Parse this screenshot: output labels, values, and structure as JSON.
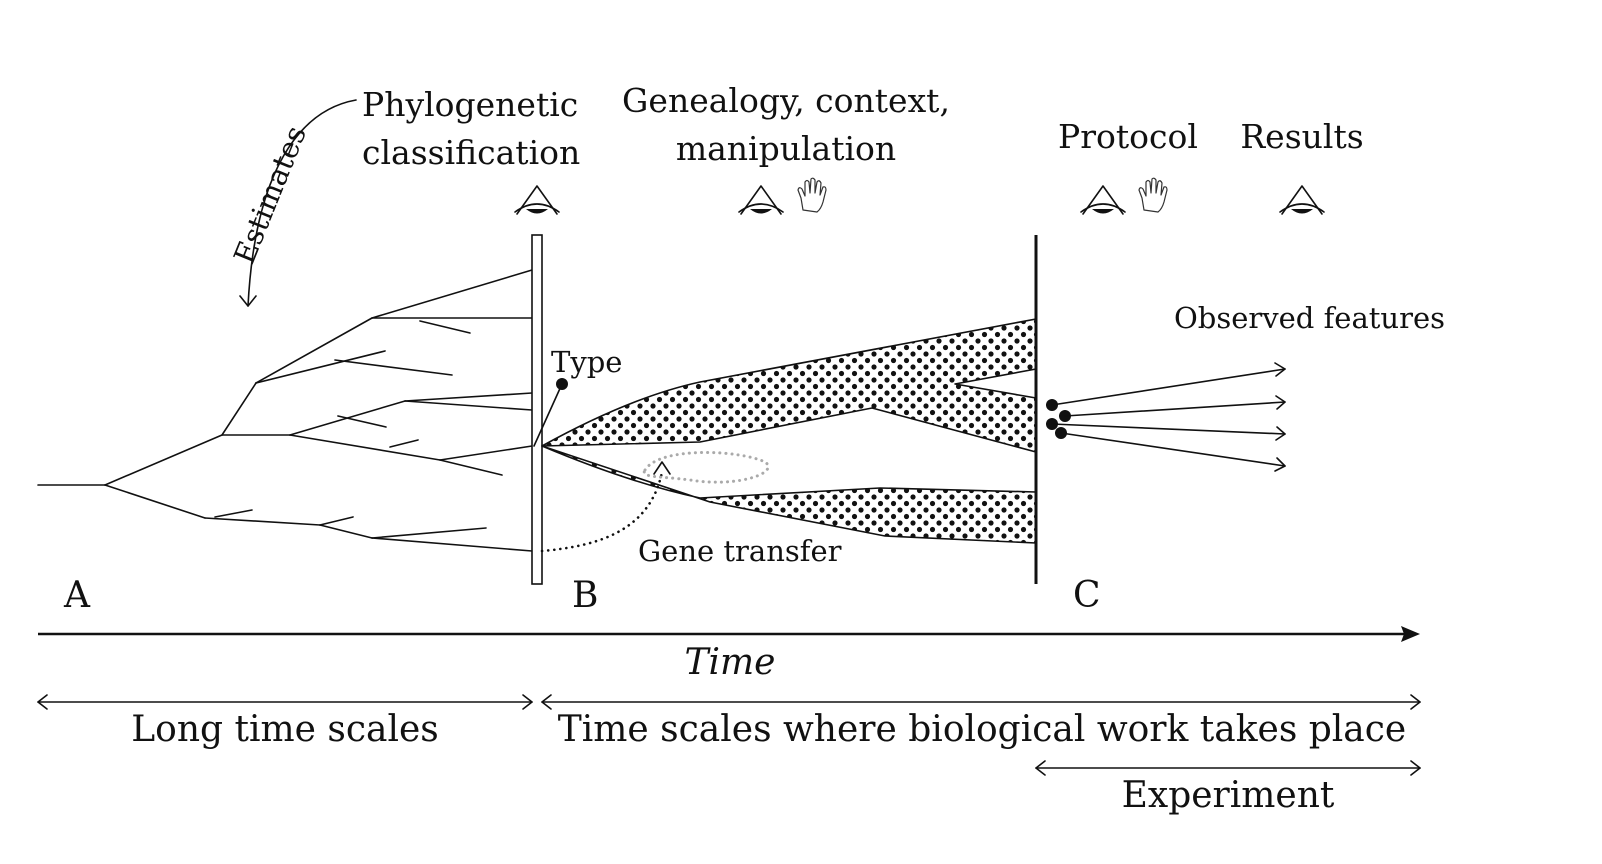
{
  "labels": {
    "estimates": "Estimates",
    "phylogenetic_line1": "Phylogenetic",
    "phylogenetic_line2": "classification",
    "genealogy_line1": "Genealogy, context,",
    "genealogy_line2": "manipulation",
    "protocol": "Protocol",
    "results": "Results",
    "type": "Type",
    "observed_features": "Observed features",
    "gene_transfer": "Gene transfer",
    "point_a": "A",
    "point_b": "B",
    "point_c": "C",
    "time_axis": "Time",
    "long_time_scales": "Long time scales",
    "bio_time_scales": "Time scales where biological work takes place",
    "experiment": "Experiment"
  },
  "icons": {
    "observe": "eye-icon",
    "manipulate": "hand-icon"
  },
  "colors": {
    "ink": "#111111",
    "gene_transfer_shadow": "#aaaaaa",
    "background": "#ffffff"
  }
}
